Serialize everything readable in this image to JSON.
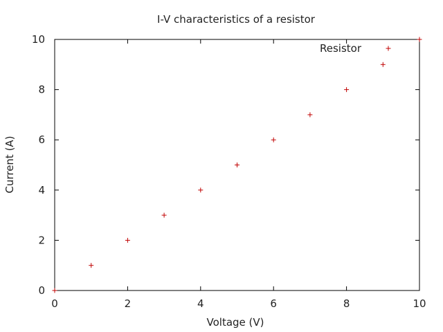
{
  "chart_data": {
    "type": "scatter",
    "title": "I-V characteristics of a resistor",
    "xlabel": "Voltage (V)",
    "ylabel": "Current (A)",
    "xlim": [
      0,
      10
    ],
    "ylim": [
      0,
      10
    ],
    "xticks": [
      0,
      2,
      4,
      6,
      8,
      10
    ],
    "yticks": [
      0,
      2,
      4,
      6,
      8,
      10
    ],
    "grid": false,
    "legend_position": "top-right",
    "series": [
      {
        "name": "Resistor",
        "color": "#c00000",
        "marker": "plus",
        "x": [
          0,
          1,
          2,
          3,
          4,
          5,
          6,
          7,
          8,
          9,
          10
        ],
        "y": [
          0,
          1,
          2,
          3,
          4,
          5,
          6,
          7,
          8,
          9,
          10
        ]
      }
    ]
  }
}
